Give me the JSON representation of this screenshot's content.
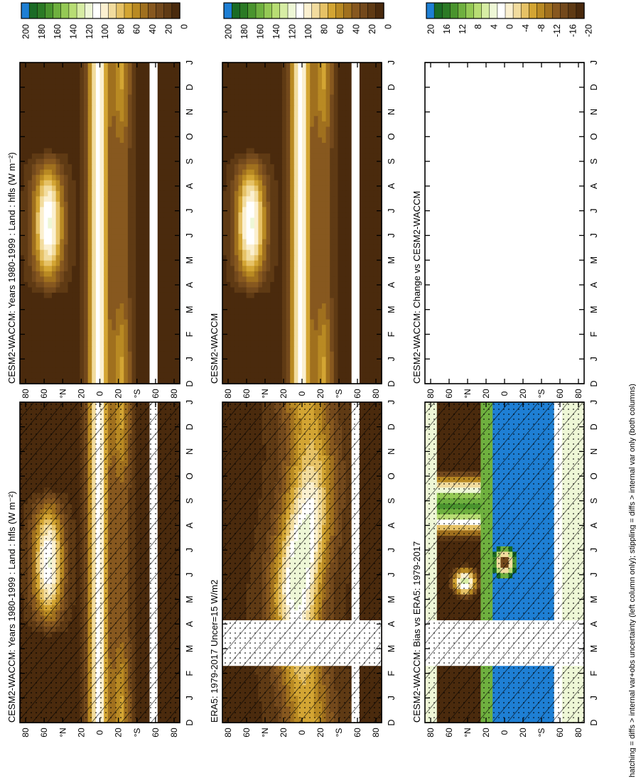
{
  "palette": {
    "abs": [
      "#4a2a0d",
      "#5f3a14",
      "#73491c",
      "#87581f",
      "#a0701e",
      "#b98a23",
      "#d3a533",
      "#e6c266",
      "#f2dc9e",
      "#fbf0d0",
      "#ffffff",
      "#eef7d6",
      "#d7eda4",
      "#b8dd74",
      "#95c955",
      "#6fb03f",
      "#4a942e",
      "#2b7a25",
      "#1a6b25",
      "#1e7fd4"
    ],
    "diff": [
      "#4a2a0d",
      "#5f3a14",
      "#73491c",
      "#87581f",
      "#a0701e",
      "#b98a23",
      "#d3a533",
      "#e6c266",
      "#f2dc9e",
      "#fbf0d0",
      "#ffffff",
      "#eef7d6",
      "#d7eda4",
      "#b8dd74",
      "#95c955",
      "#6fb03f",
      "#4a942e",
      "#2b7a25",
      "#1a6b25",
      "#1e7fd4"
    ],
    "blank_gap": "#ffffff"
  },
  "footnote": "hatching = diffs > internal var+obs uncertainty (left column only); stippling = diffs > internal var only (both columns)",
  "months": [
    "D",
    "J",
    "F",
    "M",
    "A",
    "M",
    "J",
    "J",
    "A",
    "S",
    "O",
    "N",
    "D",
    "J"
  ],
  "lat_ticks": [
    "80",
    "60",
    "°N",
    "20",
    "0",
    "20",
    "°S",
    "60",
    "80"
  ],
  "colorbar_abs": {
    "labels": [
      "200",
      "180",
      "160",
      "140",
      "120",
      "100",
      "80",
      "60",
      "40",
      "20",
      "0"
    ]
  },
  "colorbar_diff": {
    "labels": [
      "20",
      "16",
      "12",
      "8",
      "4",
      "0",
      "-4",
      "-8",
      "-12",
      "-16",
      "-20"
    ]
  },
  "panels": [
    {
      "id": "p11",
      "title": "CESM2-WACCM: Years 1980-1999 : Land : hfls (W m⁻²)",
      "field": "model",
      "scale": "abs",
      "hatch": true,
      "stipple": true,
      "gap": false
    },
    {
      "id": "p12",
      "title": "CESM2-WACCM: Years 1980-1999 : Land : hfls (W m⁻²)",
      "field": "model",
      "scale": "abs",
      "hatch": false,
      "stipple": false,
      "gap": false
    },
    {
      "id": "p21",
      "title": "ERA5: 1979-2017 Uncer=15 W/m2",
      "field": "obs",
      "scale": "abs",
      "hatch": true,
      "stipple": true,
      "gap": true
    },
    {
      "id": "p22",
      "title": "CESM2-WACCM",
      "field": "model",
      "scale": "abs",
      "hatch": false,
      "stipple": false,
      "gap": false
    },
    {
      "id": "p31",
      "title": "CESM2-WACCM: Bias vs ERA5: 1979-2017",
      "field": "bias",
      "scale": "diff",
      "hatch": true,
      "stipple": true,
      "gap": true
    },
    {
      "id": "p32",
      "title": "CESM2-WACCM: Change vs CESM2-WACCM",
      "field": "empty",
      "scale": "diff",
      "hatch": false,
      "stipple": false,
      "gap": false
    }
  ],
  "chart_data": [
    {
      "type": "heatmap",
      "title": "CESM2-WACCM: Years 1980-1999 : Land : hfls (W m⁻²)",
      "x": "month",
      "y": "latitude",
      "colorbar": [
        0,
        200
      ],
      "note": "peak ~80-100 W m⁻² near 60°N in Jun-Jul; ~100 W m⁻² along equator year-round; 0-20 poleward of 60°"
    },
    {
      "type": "heatmap",
      "title": "CESM2-WACCM: Years 1980-1999 : Land : hfls (W m⁻²)",
      "x": "month",
      "y": "latitude",
      "colorbar": [
        0,
        200
      ]
    },
    {
      "type": "heatmap",
      "title": "ERA5: 1979-2017 Uncer=15 W/m2",
      "x": "month",
      "y": "latitude",
      "colorbar": [
        0,
        200
      ]
    },
    {
      "type": "heatmap",
      "title": "CESM2-WACCM",
      "x": "month",
      "y": "latitude",
      "colorbar": [
        0,
        200
      ]
    },
    {
      "type": "heatmap",
      "title": "CESM2-WACCM: Bias vs ERA5: 1979-2017",
      "x": "month",
      "y": "latitude",
      "colorbar": [
        -20,
        20
      ],
      "note": "positive (>20) bias in tropics about 0-20°S; negative (<-20) in northern mid-latitudes"
    },
    {
      "type": "heatmap",
      "title": "CESM2-WACCM: Change vs CESM2-WACCM",
      "x": "month",
      "y": "latitude",
      "colorbar": [
        -20,
        20
      ],
      "note": "all values zero"
    }
  ]
}
